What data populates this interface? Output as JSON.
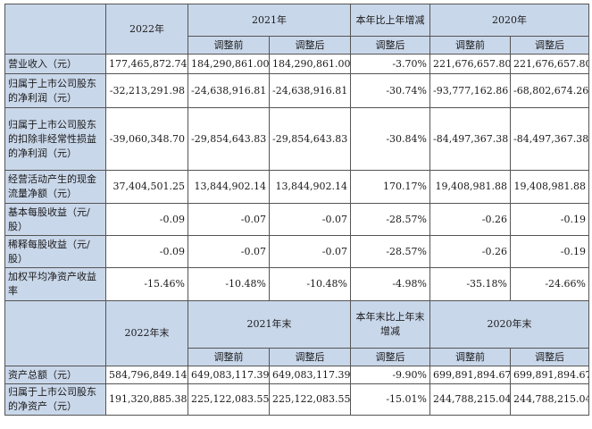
{
  "table1": {
    "header": {
      "col_2022": "2022年",
      "col_2021": "2021年",
      "col_change": "本年比上年增减",
      "col_2020": "2020年",
      "sub_before": "调整前",
      "sub_after": "调整后",
      "sub_after_change": "调整后",
      "sub_before_2020": "调整前",
      "sub_after_2020": "调整后"
    },
    "rows": [
      {
        "label": "营业收入（元）",
        "v2022": "177,465,872.74",
        "v2021_before": "184,290,861.00",
        "v2021_after": "184,290,861.00",
        "change": "-3.70%",
        "v2020_before": "221,676,657.80",
        "v2020_after": "221,676,657.80"
      },
      {
        "label": "归属于上市公司股东的净利润（元）",
        "v2022": "-32,213,291.98",
        "v2021_before": "-24,638,916.81",
        "v2021_after": "-24,638,916.81",
        "change": "-30.74%",
        "v2020_before": "-93,777,162.86",
        "v2020_after": "-68,802,674.26"
      },
      {
        "label": "归属于上市公司股东的扣除非经常性损益的净利润（元）",
        "v2022": "-39,060,348.70",
        "v2021_before": "-29,854,643.83",
        "v2021_after": "-29,854,643.83",
        "change": "-30.84%",
        "v2020_before": "-84,497,367.38",
        "v2020_after": "-84,497,367.38"
      },
      {
        "label": "经营活动产生的现金流量净额（元）",
        "v2022": "37,404,501.25",
        "v2021_before": "13,844,902.14",
        "v2021_after": "13,844,902.14",
        "change": "170.17%",
        "v2020_before": "19,408,981.88",
        "v2020_after": "19,408,981.88"
      },
      {
        "label": "基本每股收益（元/股）",
        "v2022": "-0.09",
        "v2021_before": "-0.07",
        "v2021_after": "-0.07",
        "change": "-28.57%",
        "v2020_before": "-0.26",
        "v2020_after": "-0.19"
      },
      {
        "label": "稀释每股收益（元/股）",
        "v2022": "-0.09",
        "v2021_before": "-0.07",
        "v2021_after": "-0.07",
        "change": "-28.57%",
        "v2020_before": "-0.26",
        "v2020_after": "-0.19"
      },
      {
        "label": "加权平均净资产收益率",
        "v2022": "-15.46%",
        "v2021_before": "-10.48%",
        "v2021_after": "-10.48%",
        "change": "-4.98%",
        "v2020_before": "-35.18%",
        "v2020_after": "-24.66%"
      }
    ]
  },
  "table2": {
    "header": {
      "col_2022": "2022年末",
      "col_2021": "2021年末",
      "col_change": "本年末比上年末增减",
      "col_2020": "2020年末",
      "sub_before": "调整前",
      "sub_after": "调整后",
      "sub_after_change": "调整后",
      "sub_before_2020": "调整前",
      "sub_after_2020": "调整后"
    },
    "rows": [
      {
        "label": "资产总额（元）",
        "v2022": "584,796,849.14",
        "v2021_before": "649,083,117.39",
        "v2021_after": "649,083,117.39",
        "change": "-9.90%",
        "v2020_before": "699,891,894.67",
        "v2020_after": "699,891,894.67"
      },
      {
        "label": "归属于上市公司股东的净资产（元）",
        "v2022": "191,320,885.38",
        "v2021_before": "225,122,083.55",
        "v2021_after": "225,122,083.55",
        "change": "-15.01%",
        "v2020_before": "244,788,215.04",
        "v2020_after": "244,788,215.04"
      }
    ]
  }
}
